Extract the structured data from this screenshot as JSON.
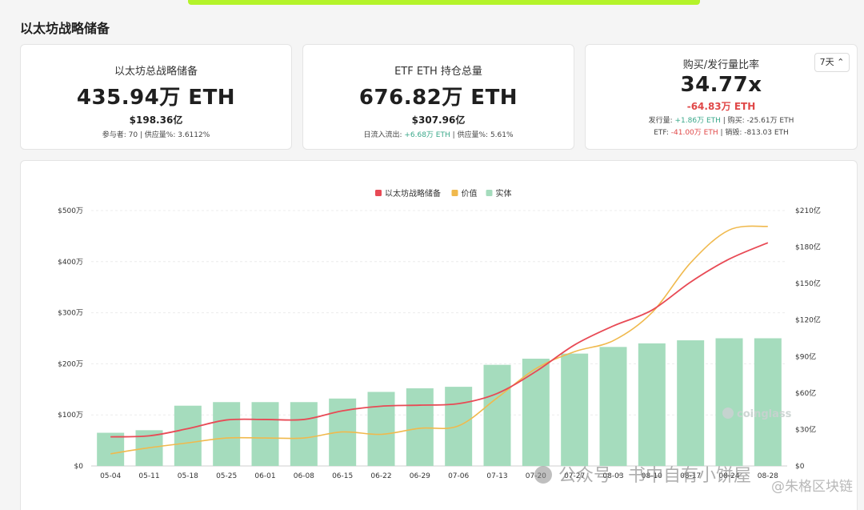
{
  "page": {
    "title": "以太坊战略储备"
  },
  "cards": {
    "reserve": {
      "title": "以太坊总战略储备",
      "main": "435.94万 ETH",
      "sub": "$198.36亿",
      "meta": "参与者: 70  |  供应量%: 3.6112%"
    },
    "etf": {
      "title": "ETF ETH 持仓总量",
      "main": "676.82万 ETH",
      "sub": "$307.96亿",
      "meta_prefix": "日流入流出: ",
      "meta_flow": "+6.68万 ETH",
      "meta_suffix": "  |  供应量%: 5.61%"
    },
    "ratio": {
      "title": "购买/发行量比率",
      "main": "34.77x",
      "change": "-64.83万 ETH",
      "line1_issue_label": "发行量: ",
      "line1_issue_value": "+1.86万 ETH",
      "line1_buy": "  |  购买: -25.61万 ETH",
      "line2_etf_label": "ETF: ",
      "line2_etf_value": "-41.00万 ETH",
      "line2_burn": "  |  销毁: -813.03 ETH",
      "period": "7天"
    }
  },
  "colors": {
    "reserve_line": "#e84a55",
    "value_line": "#f0b94d",
    "bars": "#a5dcbd",
    "positive": "#3aa88a",
    "negative": "#e04848"
  },
  "chart_data": {
    "type": "bar",
    "legend": [
      "以太坊战略储备",
      "价值",
      "实体"
    ],
    "legend_position": "top-center",
    "categories": [
      "05-04",
      "05-11",
      "05-18",
      "05-25",
      "06-01",
      "06-08",
      "06-15",
      "06-22",
      "06-29",
      "07-06",
      "07-13",
      "07-20",
      "07-27",
      "08-03",
      "08-10",
      "08-17",
      "08-24",
      "08-28"
    ],
    "left_axis": {
      "ticks": [
        "$0",
        "$100万",
        "$200万",
        "$300万",
        "$400万",
        "$500万"
      ],
      "range": [
        0,
        500
      ]
    },
    "right_axis": {
      "ticks": [
        "$0",
        "$30亿",
        "$60亿",
        "$90亿",
        "$120亿",
        "$150亿",
        "$180亿",
        "$210亿"
      ],
      "range": [
        0,
        210
      ]
    },
    "series": [
      {
        "name": "实体",
        "type": "bar",
        "axis": "left",
        "values": [
          65,
          70,
          118,
          125,
          125,
          125,
          132,
          145,
          152,
          155,
          198,
          210,
          220,
          233,
          240,
          246,
          250,
          250
        ]
      },
      {
        "name": "以太坊战略储备",
        "type": "line",
        "axis": "left",
        "values": [
          57,
          59,
          73,
          90,
          91,
          91,
          108,
          117,
          119,
          122,
          142,
          185,
          237,
          274,
          305,
          360,
          405,
          437
        ]
      },
      {
        "name": "价值",
        "type": "line",
        "axis": "right",
        "values": [
          10,
          15,
          19,
          23,
          23,
          23,
          28,
          26,
          31,
          33,
          56,
          80,
          94,
          103,
          126,
          167,
          194,
          197
        ]
      }
    ],
    "grid": true
  },
  "watermarks": {
    "logo": "coinglass",
    "wechat": "公众号 · 书中自有小饼屋",
    "corner": "@朱格区块链"
  }
}
